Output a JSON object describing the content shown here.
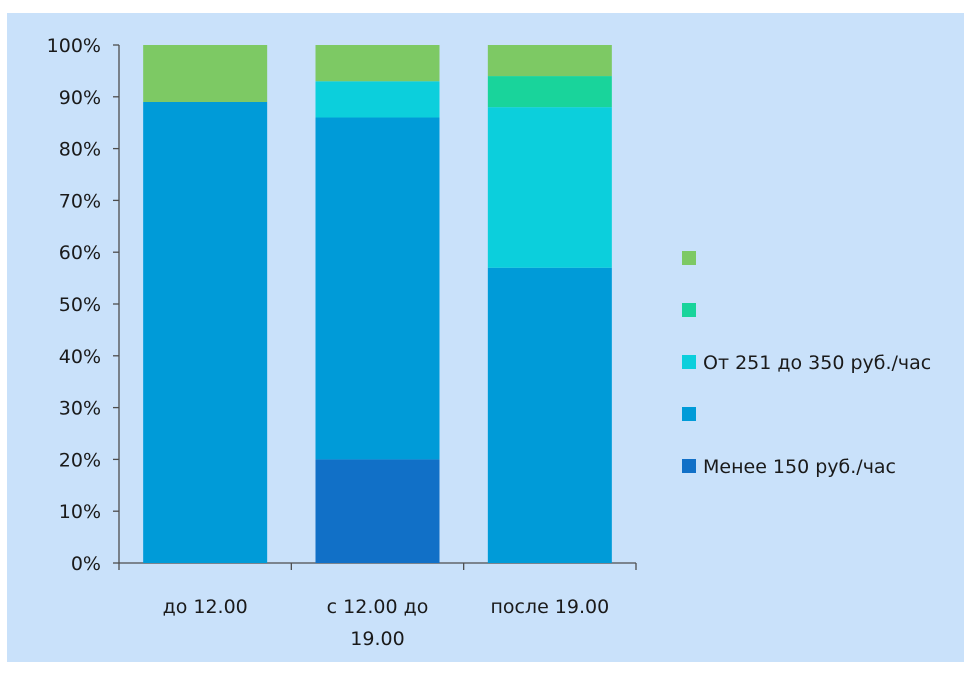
{
  "chart_data": {
    "type": "bar",
    "stacked": true,
    "percent": true,
    "categories": [
      "до 12.00",
      "с 12.00 до 19.00",
      "после 19.00"
    ],
    "category_lines": [
      [
        "до 12.00"
      ],
      [
        "с 12.00 до",
        "19.00"
      ],
      [
        "после 19.00"
      ]
    ],
    "series": [
      {
        "name": "Менее 150 руб./час",
        "color": "#1170c7",
        "values": [
          0,
          20,
          0
        ]
      },
      {
        "name": "",
        "color": "#009bd8",
        "values": [
          89,
          66,
          57
        ]
      },
      {
        "name": "От 251 до 350 руб./час",
        "color": "#0ccfdc",
        "values": [
          0,
          7,
          31
        ]
      },
      {
        "name": "",
        "color": "#19d49b",
        "values": [
          0,
          0,
          6
        ]
      },
      {
        "name": "",
        "color": "#7dc964",
        "values": [
          11,
          7,
          6
        ]
      }
    ],
    "ylim": [
      0,
      100
    ],
    "yticks": [
      "0%",
      "10%",
      "20%",
      "30%",
      "40%",
      "50%",
      "60%",
      "70%",
      "80%",
      "90%",
      "100%"
    ],
    "legend": "right",
    "grid": false,
    "background": "#c9e1fa",
    "title": "",
    "xlabel": "",
    "ylabel": ""
  }
}
